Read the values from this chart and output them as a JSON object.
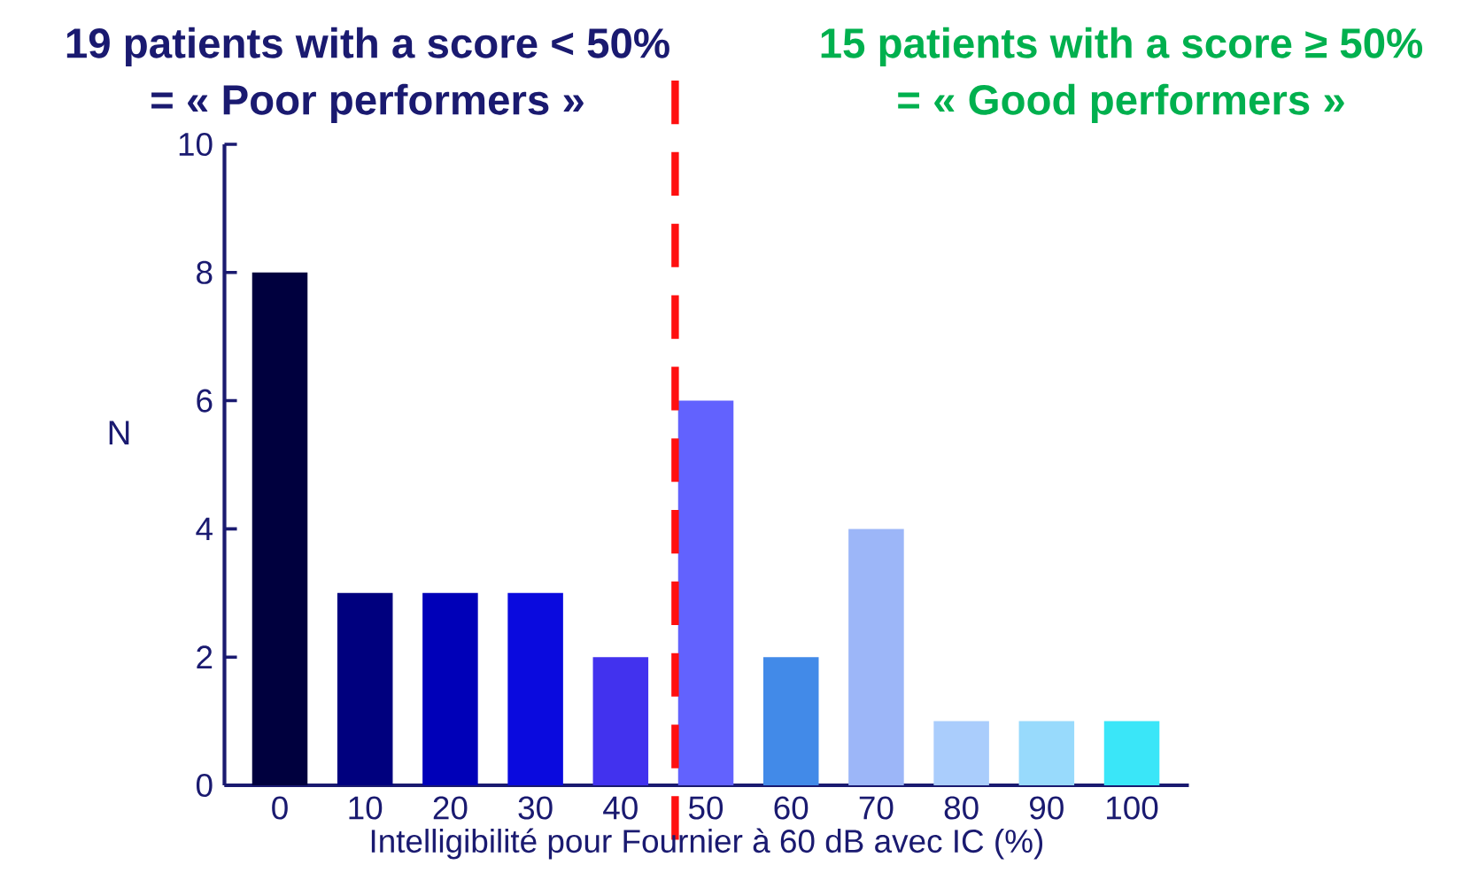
{
  "chart_data": {
    "type": "bar",
    "x": [
      0,
      10,
      20,
      30,
      40,
      50,
      60,
      70,
      80,
      90,
      100
    ],
    "values": [
      8,
      3,
      3,
      3,
      2,
      6,
      2,
      4,
      1,
      1,
      1
    ],
    "colors": [
      "#00003e",
      "#00007e",
      "#0000b8",
      "#0a0ade",
      "#4232ee",
      "#6262fe",
      "#428ae8",
      "#9cb6f8",
      "#aacdfc",
      "#98dafc",
      "#3ae6f8"
    ],
    "xlim": [
      -6.5,
      106.7
    ],
    "xticks": [
      0,
      10,
      20,
      30,
      40,
      50,
      60,
      70,
      80,
      90,
      100
    ],
    "ylim": [
      0,
      10
    ],
    "yticks": [
      0,
      2,
      4,
      6,
      8,
      10
    ],
    "xlabel": "Intelligibilité pour Fournier à 60 dB avec IC (%)",
    "ylabel": "N",
    "annotations": [
      "19 patients with a score < 50%",
      "= « Poor performers »",
      "15 patients with a score ≥ 50%",
      "= « Good performers »"
    ],
    "ref_lines": [
      {
        "axis": "x",
        "value": 46.4,
        "color": "#ff1010",
        "line_style": "dashed"
      }
    ]
  }
}
